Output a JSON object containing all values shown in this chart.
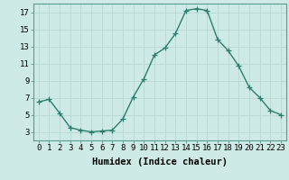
{
  "x": [
    0,
    1,
    2,
    3,
    4,
    5,
    6,
    7,
    8,
    9,
    10,
    11,
    12,
    13,
    14,
    15,
    16,
    17,
    18,
    19,
    20,
    21,
    22,
    23
  ],
  "y": [
    6.5,
    6.8,
    5.2,
    3.5,
    3.2,
    3.0,
    3.1,
    3.2,
    4.5,
    7.1,
    9.2,
    12.0,
    12.8,
    14.5,
    17.2,
    17.4,
    17.2,
    13.8,
    12.5,
    10.7,
    8.2,
    7.0,
    5.5,
    5.0
  ],
  "xlabel": "Humidex (Indice chaleur)",
  "line_color": "#2d7d6e",
  "marker": "+",
  "bg_color": "#ceeae6",
  "grid_color": "#b8d8d4",
  "xlim": [
    -0.5,
    23.5
  ],
  "ylim": [
    2.0,
    18.0
  ],
  "yticks": [
    3,
    5,
    7,
    9,
    11,
    13,
    15,
    17
  ],
  "xticks": [
    0,
    1,
    2,
    3,
    4,
    5,
    6,
    7,
    8,
    9,
    10,
    11,
    12,
    13,
    14,
    15,
    16,
    17,
    18,
    19,
    20,
    21,
    22,
    23
  ],
  "xlabel_fontsize": 7.5,
  "tick_fontsize": 6.5,
  "line_width": 1.0,
  "marker_size": 4
}
